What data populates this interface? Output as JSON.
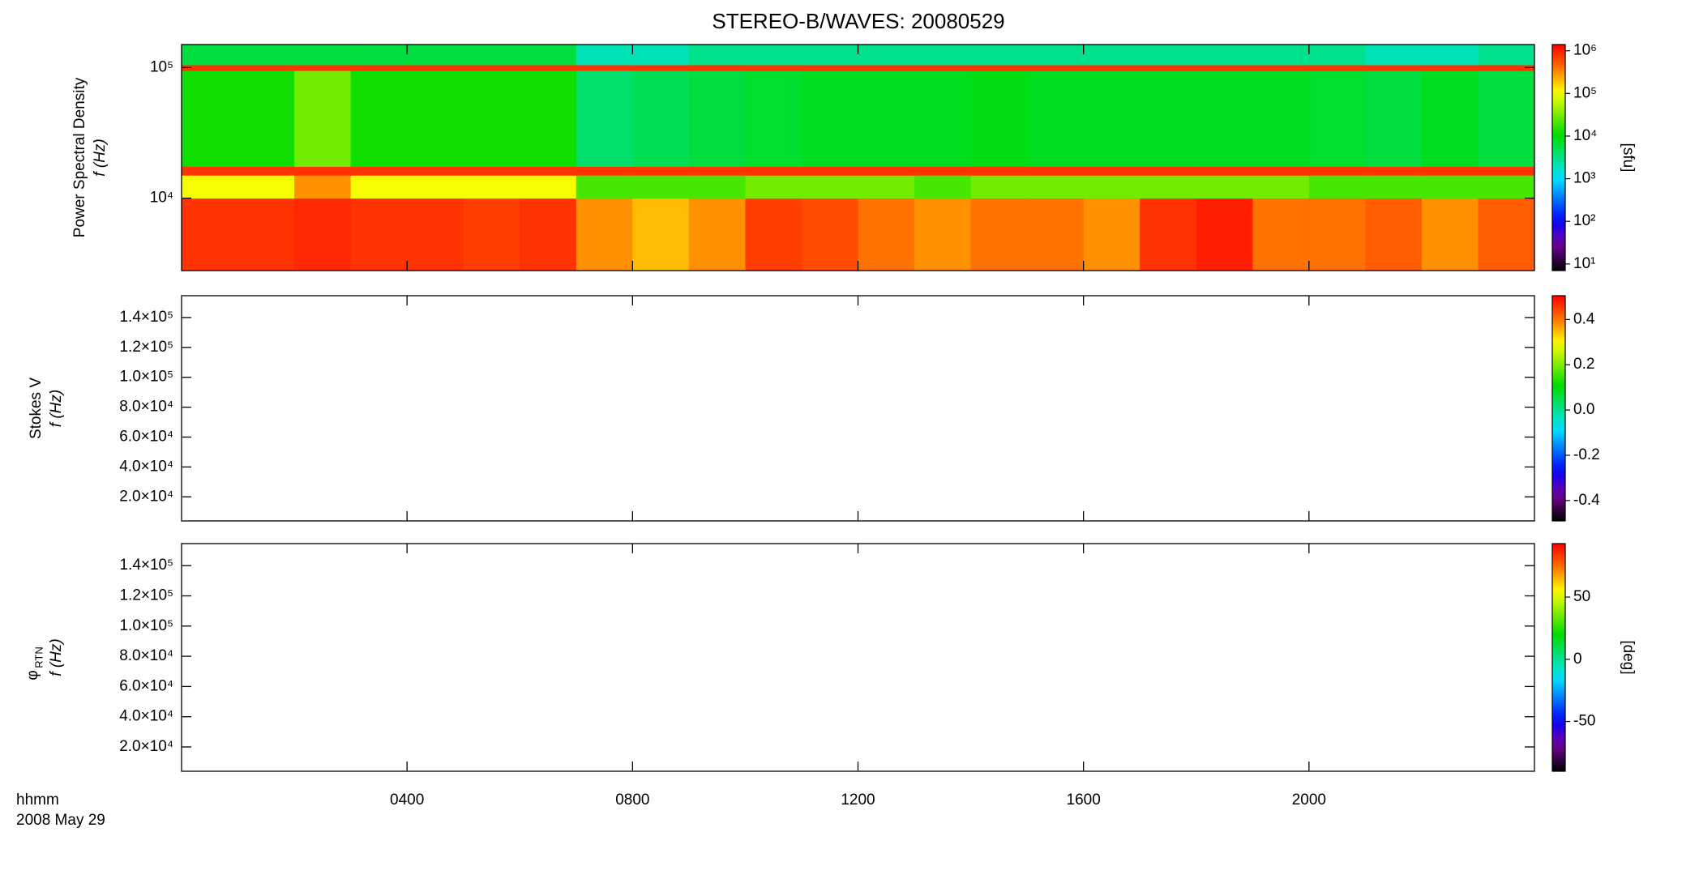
{
  "title": "STEREO-B/WAVES: 20080529",
  "x_caption": "hhmm",
  "date": "2008 May 29",
  "chart_data": [
    {
      "type": "heatmap",
      "ylabel": "Power Spectral Density",
      "ylabel_unit": "f (Hz)",
      "yscale": "log",
      "ylim": [
        2790,
        150000
      ],
      "yticks": [
        {
          "value": 10000,
          "label": "10⁴"
        },
        {
          "value": 100000,
          "label": "10⁵"
        }
      ],
      "xlim": [
        0,
        24
      ],
      "xticks": [
        {
          "value": 4,
          "label": "0400"
        },
        {
          "value": 8,
          "label": "0800"
        },
        {
          "value": 12,
          "label": "1200"
        },
        {
          "value": 16,
          "label": "1600"
        },
        {
          "value": 20,
          "label": "2000"
        }
      ],
      "x_edges": [
        0,
        1,
        2,
        3,
        4,
        5,
        6,
        7,
        8,
        9,
        10,
        11,
        12,
        13,
        14,
        15,
        16,
        17,
        18,
        19,
        20,
        21,
        22,
        23,
        24
      ],
      "y_edges": [
        2790,
        10000,
        15000,
        17500,
        95000,
        105000,
        150000
      ],
      "z": [
        [
          800000,
          800000,
          900000,
          800000,
          800000,
          700000,
          800000,
          300000,
          200000,
          300000,
          700000,
          600000,
          400000,
          300000,
          400000,
          400000,
          300000,
          800000,
          1000000,
          400000,
          400000,
          500000,
          300000,
          500000
        ],
        [
          100000,
          100000,
          300000,
          100000,
          100000,
          100000,
          100000,
          20000,
          20000,
          20000,
          30000,
          30000,
          30000,
          20000,
          30000,
          30000,
          30000,
          30000,
          30000,
          30000,
          20000,
          20000,
          20000,
          20000
        ],
        [
          800000,
          800000,
          800000,
          800000,
          800000,
          800000,
          800000,
          800000,
          800000,
          800000,
          800000,
          800000,
          800000,
          800000,
          800000,
          800000,
          800000,
          800000,
          800000,
          800000,
          800000,
          800000,
          800000,
          800000
        ],
        [
          12000,
          12000,
          30000,
          12000,
          12000,
          12000,
          12000,
          4000,
          5000,
          6000,
          7000,
          8000,
          8000,
          8000,
          9000,
          8000,
          8000,
          8000,
          8000,
          8000,
          7000,
          6000,
          8000,
          6000
        ],
        [
          800000,
          800000,
          800000,
          800000,
          800000,
          800000,
          800000,
          800000,
          800000,
          800000,
          800000,
          800000,
          800000,
          800000,
          800000,
          800000,
          800000,
          800000,
          800000,
          800000,
          800000,
          800000,
          800000,
          800000
        ],
        [
          6000,
          6000,
          6000,
          6000,
          6000,
          6000,
          6000,
          2000,
          2000,
          3000,
          3000,
          3000,
          3000,
          3000,
          3000,
          3000,
          3000,
          3000,
          3000,
          3000,
          3000,
          2000,
          2000,
          3000
        ]
      ],
      "colorbar": {
        "scale": "log",
        "lim": [
          7,
          1400000
        ],
        "label": "[sfu]",
        "ticks": [
          {
            "value": 10,
            "label": "10¹"
          },
          {
            "value": 100,
            "label": "10²"
          },
          {
            "value": 1000,
            "label": "10³"
          },
          {
            "value": 10000,
            "label": "10⁴"
          },
          {
            "value": 100000,
            "label": "10⁵"
          },
          {
            "value": 1000000,
            "label": "10⁶"
          }
        ]
      }
    },
    {
      "type": "heatmap",
      "ylabel": "Stokes V",
      "ylabel_unit": "f (Hz)",
      "yscale": "linear",
      "ylim": [
        3900,
        154600
      ],
      "yticks": [
        {
          "value": 20000,
          "label": "2.0×10⁴"
        },
        {
          "value": 40000,
          "label": "4.0×10⁴"
        },
        {
          "value": 60000,
          "label": "6.0×10⁴"
        },
        {
          "value": 80000,
          "label": "8.0×10⁴"
        },
        {
          "value": 100000,
          "label": "1.0×10⁵"
        },
        {
          "value": 120000,
          "label": "1.2×10⁵"
        },
        {
          "value": 140000,
          "label": "1.4×10⁵"
        }
      ],
      "xlim": [
        0,
        24
      ],
      "xticks": [
        {
          "value": 4,
          "label": "0400"
        },
        {
          "value": 8,
          "label": "0800"
        },
        {
          "value": 12,
          "label": "1200"
        },
        {
          "value": 16,
          "label": "1600"
        },
        {
          "value": 20,
          "label": "2000"
        }
      ],
      "colorbar": {
        "scale": "linear",
        "lim": [
          -0.49,
          0.505
        ],
        "ticks": [
          -0.4,
          -0.2,
          {
            "value": 0,
            "label": "0.0"
          },
          0.2,
          0.4
        ]
      }
    },
    {
      "type": "heatmap",
      "ylabel": {
        "symbol": "φ",
        "subscript": "RTN"
      },
      "ylabel_unit": "f (Hz)",
      "yscale": "linear",
      "ylim": [
        3900,
        154600
      ],
      "yticks": [
        {
          "value": 20000,
          "label": "2.0×10⁴"
        },
        {
          "value": 40000,
          "label": "4.0×10⁴"
        },
        {
          "value": 60000,
          "label": "6.0×10⁴"
        },
        {
          "value": 80000,
          "label": "8.0×10⁴"
        },
        {
          "value": 100000,
          "label": "1.0×10⁵"
        },
        {
          "value": 120000,
          "label": "1.2×10⁵"
        },
        {
          "value": 140000,
          "label": "1.4×10⁵"
        }
      ],
      "xlim": [
        0,
        24
      ],
      "xticks": [
        {
          "value": 4,
          "label": "0400"
        },
        {
          "value": 8,
          "label": "0800"
        },
        {
          "value": 12,
          "label": "1200"
        },
        {
          "value": 16,
          "label": "1600"
        },
        {
          "value": 20,
          "label": "2000"
        }
      ],
      "colorbar": {
        "scale": "linear",
        "lim": [
          -90,
          93
        ],
        "label": "[deg]",
        "ticks": [
          -50,
          0,
          50
        ]
      }
    }
  ]
}
